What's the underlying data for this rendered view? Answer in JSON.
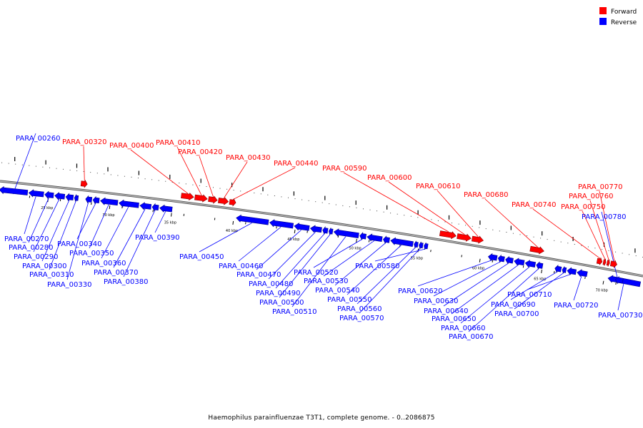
{
  "colors": {
    "forward": "#ff0000",
    "reverse": "#0000ff",
    "backbone": "#808080"
  },
  "legend": [
    {
      "key": "forward",
      "label": "Forward"
    },
    {
      "key": "reverse",
      "label": "Reverse"
    }
  ],
  "caption": "Haemophilus parainfluenzae T3T1, complete genome. - 0..2086875",
  "axis": {
    "range_kbp": [
      21,
      73
    ],
    "ticks": [
      {
        "kbp": 25,
        "label": "25 kbp"
      },
      {
        "kbp": 30,
        "label": "30 kbp"
      },
      {
        "kbp": 35,
        "label": "35 kbp"
      },
      {
        "kbp": 40,
        "label": "40 kbp"
      },
      {
        "kbp": 45,
        "label": "45 kbp"
      },
      {
        "kbp": 50,
        "label": "50 kbp"
      },
      {
        "kbp": 55,
        "label": "55 kbp"
      },
      {
        "kbp": 60,
        "label": "60 kbp"
      },
      {
        "kbp": 65,
        "label": "65 kbp"
      },
      {
        "kbp": 70,
        "label": "70 kbp"
      }
    ]
  },
  "genes": [
    {
      "id": "PARA_00260",
      "strand": "reverse",
      "start": 21.0,
      "end": 23.3
    },
    {
      "id": "PARA_00270",
      "strand": "reverse",
      "start": 23.4,
      "end": 24.6
    },
    {
      "id": "PARA_00280",
      "strand": "reverse",
      "start": 24.7,
      "end": 25.4
    },
    {
      "id": "PARA_00290",
      "strand": "reverse",
      "start": 25.5,
      "end": 26.3
    },
    {
      "id": "PARA_00300",
      "strand": "reverse",
      "start": 26.4,
      "end": 27.0
    },
    {
      "id": "PARA_00310",
      "strand": "reverse",
      "start": 27.1,
      "end": 27.4
    },
    {
      "id": "PARA_00320",
      "strand": "forward",
      "start": 27.5,
      "end": 28.0
    },
    {
      "id": "PARA_00330",
      "strand": "reverse",
      "start": 28.0,
      "end": 28.5
    },
    {
      "id": "PARA_00340",
      "strand": "reverse",
      "start": 28.6,
      "end": 29.1
    },
    {
      "id": "PARA_00350",
      "strand": "reverse",
      "start": 29.2,
      "end": 30.6
    },
    {
      "id": "PARA_00360",
      "strand": "reverse",
      "start": 30.7,
      "end": 32.3
    },
    {
      "id": "PARA_00370",
      "strand": "reverse",
      "start": 32.4,
      "end": 33.3
    },
    {
      "id": "PARA_00380",
      "strand": "reverse",
      "start": 33.4,
      "end": 33.9
    },
    {
      "id": "PARA_00390",
      "strand": "reverse",
      "start": 34.0,
      "end": 35.0
    },
    {
      "id": "PARA_00400",
      "strand": "forward",
      "start": 35.6,
      "end": 36.6
    },
    {
      "id": "PARA_00410",
      "strand": "forward",
      "start": 36.7,
      "end": 37.7
    },
    {
      "id": "PARA_00420",
      "strand": "forward",
      "start": 37.8,
      "end": 38.5
    },
    {
      "id": "PARA_00430",
      "strand": "forward",
      "start": 38.6,
      "end": 39.4
    },
    {
      "id": "PARA_00440",
      "strand": "forward",
      "start": 39.5,
      "end": 40.0
    },
    {
      "id": "PARA_00450",
      "strand": "reverse",
      "start": 40.2,
      "end": 42.8
    },
    {
      "id": "PARA_00460",
      "strand": "reverse",
      "start": 42.9,
      "end": 44.8
    },
    {
      "id": "PARA_00470",
      "strand": "reverse",
      "start": 44.9,
      "end": 46.1
    },
    {
      "id": "PARA_00480",
      "strand": "reverse",
      "start": 46.2,
      "end": 47.1
    },
    {
      "id": "PARA_00490",
      "strand": "reverse",
      "start": 47.2,
      "end": 47.6
    },
    {
      "id": "PARA_00500",
      "strand": "reverse",
      "start": 47.7,
      "end": 48.0
    },
    {
      "id": "PARA_00510",
      "strand": "reverse",
      "start": 48.1,
      "end": 50.1
    },
    {
      "id": "PARA_00520",
      "strand": "reverse",
      "start": 50.2,
      "end": 50.7
    },
    {
      "id": "PARA_00530",
      "strand": "reverse",
      "start": 50.8,
      "end": 52.0
    },
    {
      "id": "PARA_00540",
      "strand": "reverse",
      "start": 52.1,
      "end": 52.6
    },
    {
      "id": "PARA_00550",
      "strand": "reverse",
      "start": 52.7,
      "end": 54.5
    },
    {
      "id": "PARA_00560",
      "strand": "reverse",
      "start": 54.6,
      "end": 54.9
    },
    {
      "id": "PARA_00570",
      "strand": "reverse",
      "start": 55.0,
      "end": 55.3
    },
    {
      "id": "PARA_00580",
      "strand": "reverse",
      "start": 55.4,
      "end": 55.7
    },
    {
      "id": "PARA_00590",
      "strand": "forward",
      "start": 56.5,
      "end": 57.8
    },
    {
      "id": "PARA_00600",
      "strand": "forward",
      "start": 57.9,
      "end": 59.0
    },
    {
      "id": "PARA_00610",
      "strand": "forward",
      "start": 59.1,
      "end": 60.0
    },
    {
      "id": "PARA_00620",
      "strand": "reverse",
      "start": 60.6,
      "end": 61.3
    },
    {
      "id": "PARA_00630",
      "strand": "reverse",
      "start": 61.4,
      "end": 61.9
    },
    {
      "id": "PARA_00640",
      "strand": "reverse",
      "start": 62.0,
      "end": 62.6
    },
    {
      "id": "PARA_00650",
      "strand": "reverse",
      "start": 62.7,
      "end": 63.5
    },
    {
      "id": "PARA_00660",
      "strand": "reverse",
      "start": 63.6,
      "end": 64.4
    },
    {
      "id": "PARA_00670",
      "strand": "reverse",
      "start": 64.5,
      "end": 65.0
    },
    {
      "id": "PARA_00680",
      "strand": "forward",
      "start": 63.8,
      "end": 64.9
    },
    {
      "id": "PARA_00690",
      "strand": "reverse",
      "start": 66.0,
      "end": 66.5
    },
    {
      "id": "PARA_00700",
      "strand": "reverse",
      "start": 66.6,
      "end": 66.9
    },
    {
      "id": "PARA_00710",
      "strand": "reverse",
      "start": 67.0,
      "end": 67.7
    },
    {
      "id": "PARA_00720",
      "strand": "reverse",
      "start": 67.8,
      "end": 68.6
    },
    {
      "id": "PARA_00730",
      "strand": "reverse",
      "start": 70.3,
      "end": 72.9
    },
    {
      "id": "PARA_00740",
      "strand": "forward",
      "start": 69.2,
      "end": 69.6
    },
    {
      "id": "PARA_00750",
      "strand": "forward",
      "start": 69.7,
      "end": 69.9
    },
    {
      "id": "PARA_00760",
      "strand": "forward",
      "start": 70.0,
      "end": 70.2
    },
    {
      "id": "PARA_00770",
      "strand": "forward",
      "start": 70.3,
      "end": 70.8
    },
    {
      "id": "PARA_00780",
      "strand": "reverse",
      "start": 70.9,
      "end": 71.5
    }
  ]
}
